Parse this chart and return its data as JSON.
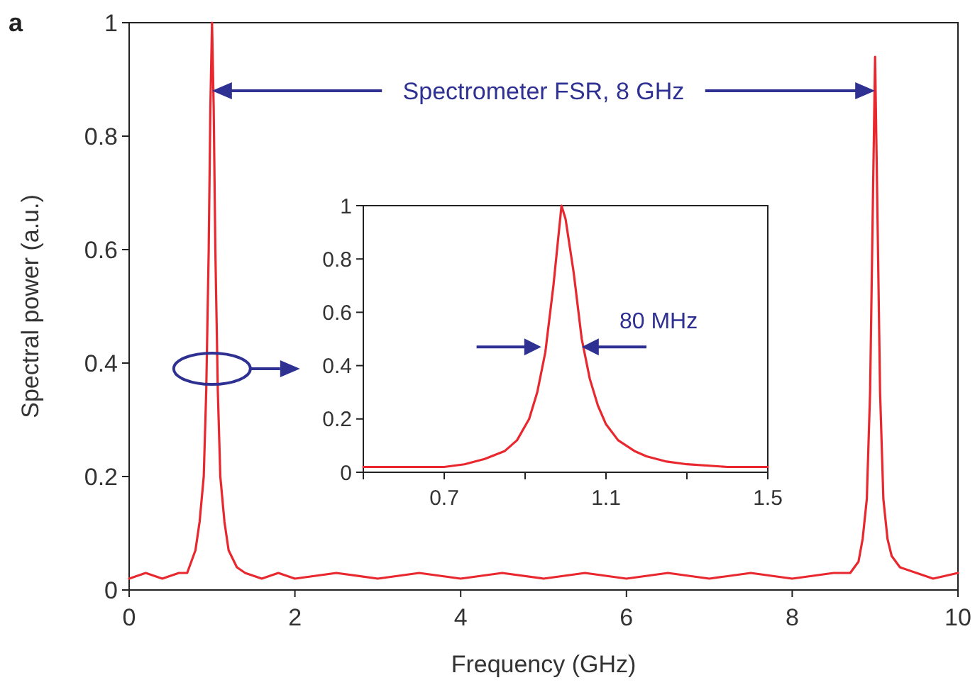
{
  "chart_data": [
    {
      "type": "line",
      "xlabel": "Frequency (GHz)",
      "ylabel": "Spectral power (a.u.)",
      "xlim": [
        0,
        10
      ],
      "ylim": [
        0,
        1
      ],
      "xticks": [
        0,
        2,
        4,
        6,
        8,
        10
      ],
      "yticks": [
        0,
        0.2,
        0.4,
        0.6,
        0.8,
        1
      ],
      "grid": false,
      "line_style": "solid",
      "annotations": [
        "a",
        "Spectrometer FSR, 8 GHz"
      ],
      "series": [
        {
          "color": "#e8282e",
          "x": [
            0,
            0.2,
            0.4,
            0.6,
            0.7,
            0.75,
            0.8,
            0.85,
            0.9,
            0.93,
            0.96,
            0.98,
            1.0,
            1.02,
            1.04,
            1.07,
            1.1,
            1.15,
            1.2,
            1.3,
            1.4,
            1.6,
            1.8,
            2.0,
            2.5,
            3,
            3.5,
            4,
            4.5,
            5,
            5.5,
            6,
            6.5,
            7,
            7.5,
            8,
            8.5,
            8.7,
            8.8,
            8.85,
            8.9,
            8.94,
            8.97,
            9.0,
            9.03,
            9.06,
            9.1,
            9.15,
            9.2,
            9.3,
            9.5,
            9.7,
            10
          ],
          "values": [
            0.02,
            0.03,
            0.02,
            0.03,
            0.03,
            0.05,
            0.07,
            0.12,
            0.2,
            0.35,
            0.6,
            0.85,
            1.0,
            0.85,
            0.6,
            0.35,
            0.2,
            0.12,
            0.07,
            0.04,
            0.03,
            0.02,
            0.03,
            0.02,
            0.03,
            0.02,
            0.03,
            0.02,
            0.03,
            0.02,
            0.03,
            0.02,
            0.03,
            0.02,
            0.03,
            0.02,
            0.03,
            0.03,
            0.05,
            0.09,
            0.16,
            0.35,
            0.65,
            0.94,
            0.65,
            0.35,
            0.16,
            0.09,
            0.06,
            0.04,
            0.03,
            0.02,
            0.03
          ]
        }
      ]
    },
    {
      "type": "line",
      "xlim": [
        0.5,
        1.5
      ],
      "ylim": [
        0,
        1
      ],
      "xticks": [
        {
          "value": 0.5,
          "label": null
        },
        0.7,
        {
          "value": 0.9,
          "label": null
        },
        1.1,
        {
          "value": 1.3,
          "label": null
        },
        1.5
      ],
      "yticks": [
        0,
        0.2,
        0.4,
        0.6,
        0.8,
        1
      ],
      "grid": false,
      "line_style": "solid",
      "annotations": [
        "80 MHz"
      ],
      "series": [
        {
          "color": "#e8282e",
          "x": [
            0.5,
            0.6,
            0.7,
            0.75,
            0.8,
            0.85,
            0.88,
            0.91,
            0.93,
            0.95,
            0.97,
            0.98,
            0.99,
            1.0,
            1.02,
            1.04,
            1.06,
            1.08,
            1.1,
            1.13,
            1.17,
            1.2,
            1.25,
            1.3,
            1.4,
            1.5
          ],
          "values": [
            0.02,
            0.02,
            0.02,
            0.03,
            0.05,
            0.08,
            0.12,
            0.2,
            0.3,
            0.45,
            0.7,
            0.85,
            1.0,
            0.95,
            0.75,
            0.5,
            0.35,
            0.25,
            0.18,
            0.12,
            0.08,
            0.06,
            0.04,
            0.03,
            0.02,
            0.02
          ]
        }
      ]
    }
  ]
}
